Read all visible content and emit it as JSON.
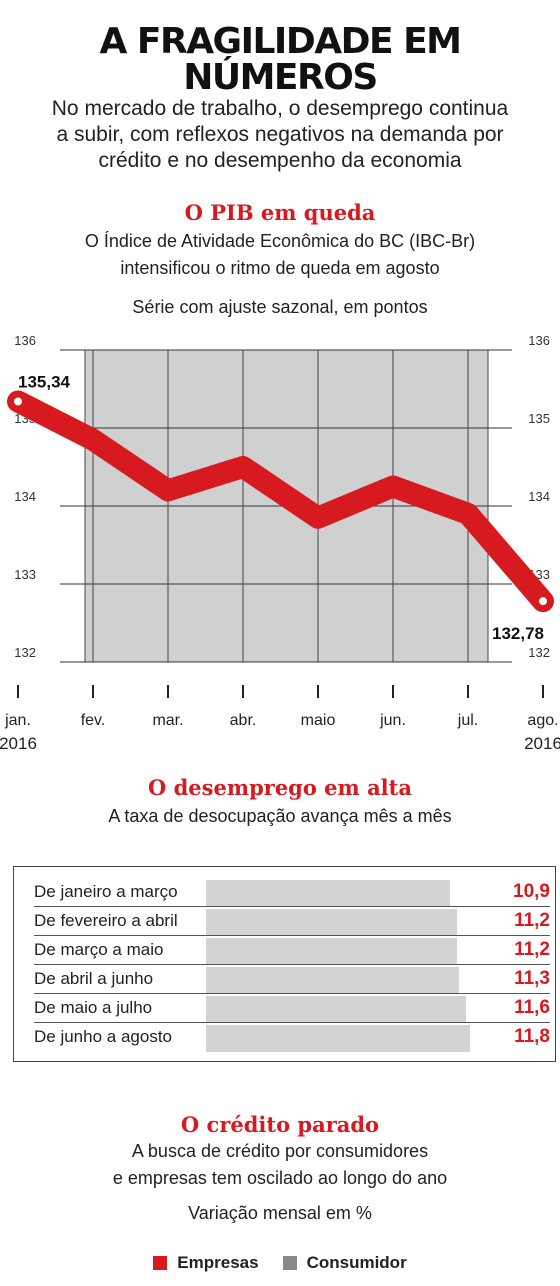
{
  "headline": {
    "line1": "A FRAGILIDADE EM",
    "line2": "NÚMEROS"
  },
  "lead": {
    "line1": "No mercado de trabalho, o desemprego continua",
    "line2": "a subir, com reflexos negativos na demanda por",
    "line3": "crédito e no desempenho da economia"
  },
  "pib": {
    "title": "O PIB em queda",
    "sub1": "O Índice de Atividade Econômica do BC (IBC-Br)",
    "sub2": "intensificou o ritmo de queda em agosto",
    "unit": "Série com ajuste sazonal, em pontos"
  },
  "desemprego": {
    "title": "O desemprego em alta",
    "sub": "A taxa de desocupação avança mês a mês"
  },
  "credito": {
    "title": "O crédito parado",
    "sub1": "A busca de crédito por consumidores",
    "sub2": "e empresas tem oscilado ao longo do ano",
    "unit": "Variação mensal em %"
  },
  "colors": {
    "accent": "#d71920",
    "bar": "#d3d3d3",
    "plot_bg": "#d0d0d0",
    "consumidor": "#888888"
  },
  "chart_data": [
    {
      "type": "line",
      "title": "O PIB em queda",
      "subtitle": "Série com ajuste sazonal, em pontos",
      "x": [
        {
          "label": "jan.",
          "sub": "2016"
        },
        {
          "label": "fev.",
          "sub": ""
        },
        {
          "label": "mar.",
          "sub": ""
        },
        {
          "label": "abr.",
          "sub": ""
        },
        {
          "label": "maio",
          "sub": ""
        },
        {
          "label": "jun.",
          "sub": ""
        },
        {
          "label": "jul.",
          "sub": ""
        },
        {
          "label": "ago.",
          "sub": "2016"
        }
      ],
      "series": [
        {
          "values": [
            135.34,
            134.85,
            134.2,
            134.5,
            133.85,
            134.25,
            133.9,
            132.78
          ]
        }
      ],
      "ylim": [
        132,
        136
      ],
      "yticks": [
        132,
        133,
        134,
        135,
        136
      ],
      "ytick_labels": [
        "132",
        "133",
        "134",
        "135",
        "136"
      ],
      "annotations": [
        {
          "index": 0,
          "text": "135,34"
        },
        {
          "index": 7,
          "text": "132,78"
        }
      ],
      "grid": true
    },
    {
      "type": "bar",
      "title": "O desemprego em alta",
      "categories": [
        "De janeiro a março",
        "De fevereiro a abril",
        "De março a maio",
        "De abril a junho",
        "De maio a julho",
        "De junho a agosto"
      ],
      "values": [
        10.9,
        11.2,
        11.2,
        11.3,
        11.6,
        11.8
      ],
      "value_labels": [
        "10,9",
        "11,2",
        "11,2",
        "11,3",
        "11,6",
        "11,8"
      ]
    },
    {
      "type": "line",
      "title": "O crédito parado",
      "subtitle": "Variação mensal em %",
      "series": [
        {
          "name": "Empresas",
          "color": "#d71920"
        },
        {
          "name": "Consumidor",
          "color": "#888888"
        }
      ],
      "legend": "top"
    }
  ]
}
